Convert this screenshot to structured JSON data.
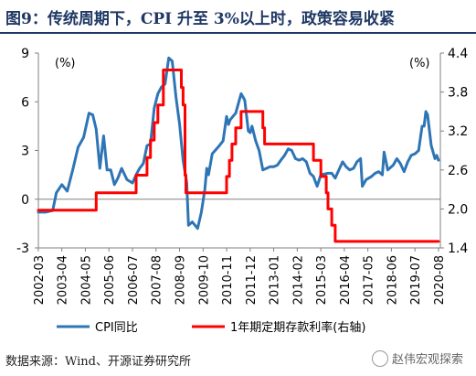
{
  "title": "图9：传统周期下，CPI 升至 3%以上时，政策容易收紧",
  "source": "数据来源：Wind、开源证券研究所",
  "watermark": "赵伟宏观探索",
  "chart_data": {
    "type": "line",
    "left_unit": "(%)",
    "right_unit": "(%)",
    "y_left": {
      "min": -3,
      "max": 9,
      "ticks": [
        -3,
        0,
        3,
        6,
        9
      ]
    },
    "y_right": {
      "min": 1.4,
      "max": 4.4,
      "ticks": [
        "1.4",
        "2.0",
        "2.6",
        "3.2",
        "3.8",
        "4.4"
      ]
    },
    "x_ticks": [
      "2002-03",
      "2003-04",
      "2004-05",
      "2005-06",
      "2006-07",
      "2007-08",
      "2008-09",
      "2009-10",
      "2010-11",
      "2011-12",
      "2013-01",
      "2014-02",
      "2015-03",
      "2016-04",
      "2017-05",
      "2018-06",
      "2019-07",
      "2020-08"
    ],
    "series": [
      {
        "name": "CPI同比",
        "axis": "left",
        "color": "#2e75b6",
        "points": [
          [
            2002.17,
            -0.8
          ],
          [
            2002.5,
            -0.8
          ],
          [
            2002.83,
            -0.7
          ],
          [
            2003.0,
            0.4
          ],
          [
            2003.25,
            0.9
          ],
          [
            2003.5,
            0.5
          ],
          [
            2003.75,
            1.8
          ],
          [
            2004.0,
            3.2
          ],
          [
            2004.25,
            3.8
          ],
          [
            2004.5,
            5.3
          ],
          [
            2004.67,
            5.2
          ],
          [
            2004.83,
            4.3
          ],
          [
            2005.0,
            1.9
          ],
          [
            2005.17,
            3.9
          ],
          [
            2005.33,
            1.8
          ],
          [
            2005.5,
            1.8
          ],
          [
            2005.67,
            0.9
          ],
          [
            2005.83,
            1.3
          ],
          [
            2006.0,
            1.9
          ],
          [
            2006.25,
            1.2
          ],
          [
            2006.5,
            1.0
          ],
          [
            2006.67,
            1.5
          ],
          [
            2006.83,
            1.9
          ],
          [
            2007.0,
            2.2
          ],
          [
            2007.17,
            3.3
          ],
          [
            2007.33,
            3.4
          ],
          [
            2007.5,
            5.6
          ],
          [
            2007.67,
            6.5
          ],
          [
            2007.83,
            6.9
          ],
          [
            2008.0,
            7.1
          ],
          [
            2008.17,
            8.7
          ],
          [
            2008.33,
            8.5
          ],
          [
            2008.5,
            6.3
          ],
          [
            2008.67,
            4.6
          ],
          [
            2008.83,
            2.4
          ],
          [
            2009.0,
            1.0
          ],
          [
            2009.08,
            -1.6
          ],
          [
            2009.25,
            -1.4
          ],
          [
            2009.5,
            -1.8
          ],
          [
            2009.67,
            -0.8
          ],
          [
            2009.83,
            0.6
          ],
          [
            2009.92,
            1.9
          ],
          [
            2010.0,
            1.5
          ],
          [
            2010.17,
            2.8
          ],
          [
            2010.5,
            3.3
          ],
          [
            2010.67,
            3.6
          ],
          [
            2010.83,
            5.1
          ],
          [
            2010.92,
            4.6
          ],
          [
            2011.0,
            4.9
          ],
          [
            2011.25,
            5.3
          ],
          [
            2011.5,
            6.5
          ],
          [
            2011.67,
            6.1
          ],
          [
            2011.83,
            4.2
          ],
          [
            2011.92,
            4.1
          ],
          [
            2012.0,
            4.5
          ],
          [
            2012.17,
            3.6
          ],
          [
            2012.33,
            3.0
          ],
          [
            2012.5,
            1.8
          ],
          [
            2012.67,
            1.9
          ],
          [
            2012.83,
            2.0
          ],
          [
            2013.0,
            2.0
          ],
          [
            2013.17,
            2.1
          ],
          [
            2013.33,
            2.4
          ],
          [
            2013.5,
            2.7
          ],
          [
            2013.67,
            3.1
          ],
          [
            2013.83,
            3.0
          ],
          [
            2014.0,
            2.5
          ],
          [
            2014.17,
            2.4
          ],
          [
            2014.33,
            2.5
          ],
          [
            2014.5,
            2.3
          ],
          [
            2014.67,
            1.6
          ],
          [
            2014.83,
            1.4
          ],
          [
            2015.0,
            0.8
          ],
          [
            2015.17,
            1.5
          ],
          [
            2015.5,
            1.6
          ],
          [
            2015.67,
            1.6
          ],
          [
            2015.83,
            1.3
          ],
          [
            2016.0,
            1.8
          ],
          [
            2016.17,
            2.3
          ],
          [
            2016.33,
            2.0
          ],
          [
            2016.5,
            1.8
          ],
          [
            2016.67,
            1.9
          ],
          [
            2016.83,
            2.3
          ],
          [
            2017.0,
            2.5
          ],
          [
            2017.08,
            0.8
          ],
          [
            2017.25,
            1.2
          ],
          [
            2017.5,
            1.4
          ],
          [
            2017.67,
            1.6
          ],
          [
            2017.83,
            1.7
          ],
          [
            2018.0,
            1.5
          ],
          [
            2018.08,
            2.9
          ],
          [
            2018.25,
            1.8
          ],
          [
            2018.5,
            2.1
          ],
          [
            2018.67,
            2.5
          ],
          [
            2018.83,
            2.2
          ],
          [
            2019.0,
            1.7
          ],
          [
            2019.17,
            2.3
          ],
          [
            2019.33,
            2.7
          ],
          [
            2019.5,
            2.8
          ],
          [
            2019.67,
            3.0
          ],
          [
            2019.83,
            4.5
          ],
          [
            2019.92,
            4.5
          ],
          [
            2020.0,
            5.4
          ],
          [
            2020.08,
            5.2
          ],
          [
            2020.25,
            3.3
          ],
          [
            2020.42,
            2.5
          ],
          [
            2020.5,
            2.7
          ],
          [
            2020.58,
            2.4
          ]
        ]
      },
      {
        "name": "1年期定期存款利率(右轴)",
        "axis": "right",
        "color": "#ff0000",
        "points": [
          [
            2002.17,
            1.98
          ],
          [
            2004.83,
            1.98
          ],
          [
            2004.83,
            2.25
          ],
          [
            2006.67,
            2.25
          ],
          [
            2006.67,
            2.52
          ],
          [
            2007.17,
            2.52
          ],
          [
            2007.17,
            2.79
          ],
          [
            2007.33,
            2.79
          ],
          [
            2007.33,
            3.06
          ],
          [
            2007.5,
            3.06
          ],
          [
            2007.5,
            3.33
          ],
          [
            2007.67,
            3.33
          ],
          [
            2007.67,
            3.6
          ],
          [
            2007.92,
            3.6
          ],
          [
            2007.92,
            4.14
          ],
          [
            2008.75,
            4.14
          ],
          [
            2008.75,
            3.87
          ],
          [
            2008.83,
            3.87
          ],
          [
            2008.83,
            3.6
          ],
          [
            2008.92,
            3.6
          ],
          [
            2008.92,
            2.52
          ],
          [
            2008.96,
            2.52
          ],
          [
            2008.96,
            2.25
          ],
          [
            2010.83,
            2.25
          ],
          [
            2010.83,
            2.5
          ],
          [
            2010.96,
            2.5
          ],
          [
            2010.96,
            2.75
          ],
          [
            2011.08,
            2.75
          ],
          [
            2011.08,
            3.0
          ],
          [
            2011.25,
            3.0
          ],
          [
            2011.25,
            3.25
          ],
          [
            2011.5,
            3.25
          ],
          [
            2011.5,
            3.5
          ],
          [
            2012.5,
            3.5
          ],
          [
            2012.5,
            3.25
          ],
          [
            2012.58,
            3.25
          ],
          [
            2012.58,
            3.0
          ],
          [
            2014.83,
            3.0
          ],
          [
            2014.83,
            2.75
          ],
          [
            2015.17,
            2.75
          ],
          [
            2015.17,
            2.5
          ],
          [
            2015.42,
            2.5
          ],
          [
            2015.42,
            2.25
          ],
          [
            2015.5,
            2.25
          ],
          [
            2015.5,
            2.0
          ],
          [
            2015.67,
            2.0
          ],
          [
            2015.67,
            1.75
          ],
          [
            2015.83,
            1.75
          ],
          [
            2015.83,
            1.5
          ],
          [
            2020.58,
            1.5
          ]
        ]
      }
    ]
  }
}
